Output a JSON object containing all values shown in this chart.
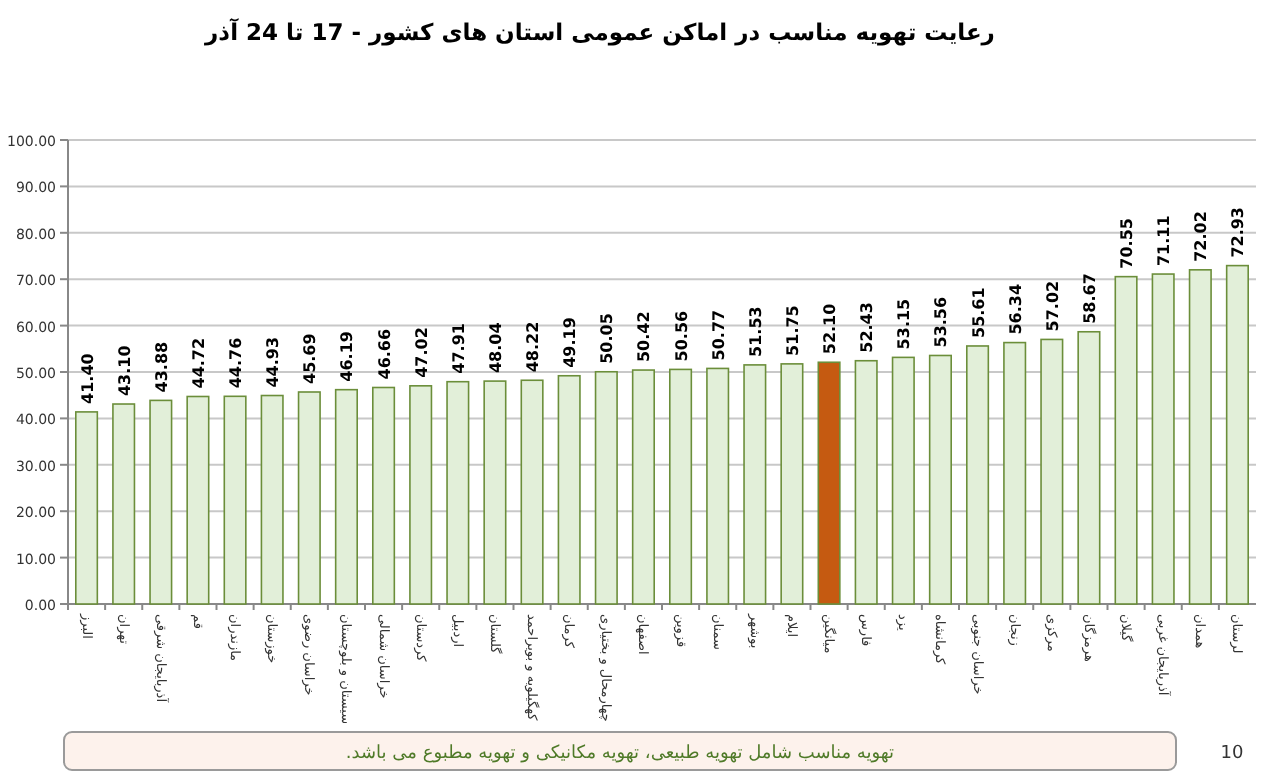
{
  "chart_data": {
    "type": "bar",
    "title": "رعایت تهویه مناسب در اماکن عمومی استان های کشور  - 17 تا 24 آذر",
    "categories": [
      "البرز",
      "تهران",
      "آذربایجان شرقی",
      "قم",
      "مازندران",
      "خوزستان",
      "خراسان رضوی",
      "سیستان و بلوچستان",
      "خراسان شمالی",
      "کردستان",
      "اردبیل",
      "گلستان",
      "کهگیلویه و بویراحمد",
      "کرمان",
      "چهارمحال و بختیاری",
      "اصفهان",
      "قزوین",
      "سمنان",
      "بوشهر",
      "ایلام",
      "میانگین",
      "فارس",
      "یزد",
      "کرمانشاه",
      "خراسان جنوبی",
      "زنجان",
      "مرکزی",
      "هرمزگان",
      "گیلان",
      "آذربایجان غربی",
      "همدان",
      "لرستان"
    ],
    "values": [
      41.4,
      43.1,
      43.88,
      44.72,
      44.76,
      44.93,
      45.69,
      46.19,
      46.66,
      47.02,
      47.91,
      48.04,
      48.22,
      49.19,
      50.05,
      50.42,
      50.56,
      50.77,
      51.53,
      51.75,
      52.1,
      52.43,
      53.15,
      53.56,
      55.61,
      56.34,
      57.02,
      58.67,
      70.55,
      71.11,
      72.02,
      72.93
    ],
    "value_labels": [
      "41.40",
      "43.10",
      "43.88",
      "44.72",
      "44.76",
      "44.93",
      "45.69",
      "46.19",
      "46.66",
      "47.02",
      "47.91",
      "48.04",
      "48.22",
      "49.19",
      "50.05",
      "50.42",
      "50.56",
      "50.77",
      "51.53",
      "51.75",
      "52.10",
      "52.43",
      "53.15",
      "53.56",
      "55.61",
      "56.34",
      "57.02",
      "58.67",
      "70.55",
      "71.11",
      "72.02",
      "72.93"
    ],
    "colors": [
      "#e2efd9",
      "#e2efd9",
      "#e2efd9",
      "#e2efd9",
      "#e2efd9",
      "#e2efd9",
      "#e2efd9",
      "#e2efd9",
      "#e2efd9",
      "#e2efd9",
      "#e2efd9",
      "#e2efd9",
      "#e2efd9",
      "#e2efd9",
      "#e2efd9",
      "#e2efd9",
      "#e2efd9",
      "#e2efd9",
      "#e2efd9",
      "#e2efd9",
      "#c55a11",
      "#e2efd9",
      "#e2efd9",
      "#e2efd9",
      "#e2efd9",
      "#e2efd9",
      "#e2efd9",
      "#e2efd9",
      "#e2efd9",
      "#e2efd9",
      "#e2efd9",
      "#e2efd9"
    ],
    "ylim": [
      0,
      100
    ],
    "yticks": [
      {
        "value": 0,
        "label": "0.00"
      },
      {
        "value": 10,
        "label": "10.00"
      },
      {
        "value": 20,
        "label": "20.00"
      },
      {
        "value": 30,
        "label": "30.00"
      },
      {
        "value": 40,
        "label": "40.00"
      },
      {
        "value": 50,
        "label": "50.00"
      },
      {
        "value": 60,
        "label": "60.00"
      },
      {
        "value": 70,
        "label": "70.00"
      },
      {
        "value": 80,
        "label": "80.00"
      },
      {
        "value": 90,
        "label": "90.00"
      },
      {
        "value": 100,
        "label": "100.00"
      }
    ],
    "grid": "y",
    "annotations": [
      "تهویه مناسب شامل تهویه طبیعی، تهویه مکانیکی و تهویه مطبوع می باشد.",
      "10"
    ]
  }
}
